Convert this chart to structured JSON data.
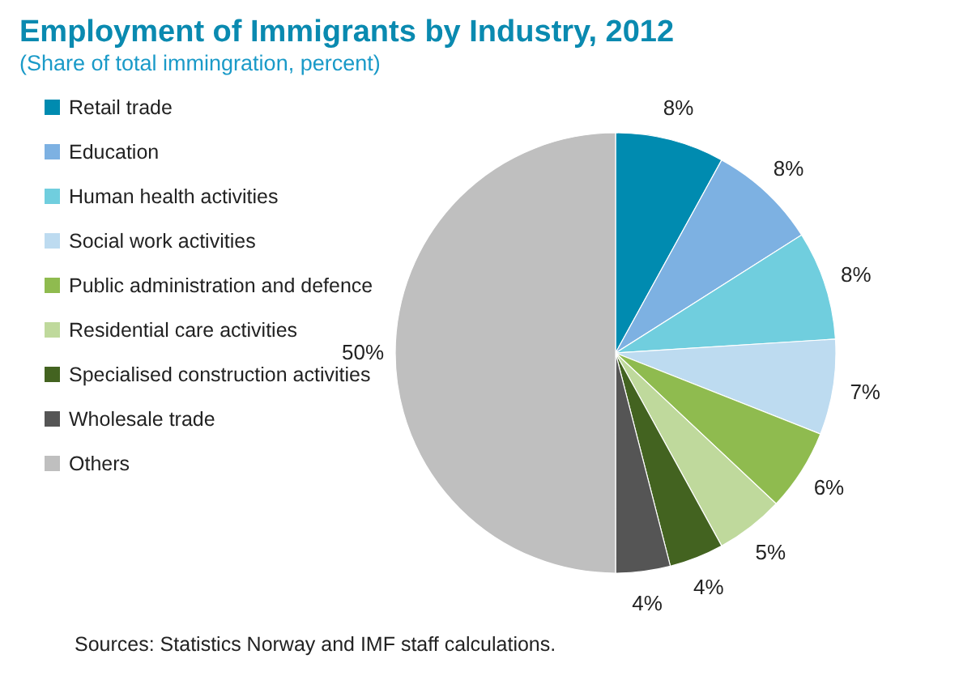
{
  "chart_data": {
    "type": "pie",
    "title": "Employment of Immigrants by Industry, 2012",
    "subtitle": "(Share of total immingration, percent)",
    "categories": [
      "Retail trade",
      "Education",
      "Human health activities",
      "Social work activities",
      "Public administration and defence",
      "Residential care activities",
      "Specialised construction activities",
      "Wholesale trade",
      "Others"
    ],
    "values": [
      8,
      8,
      8,
      7,
      6,
      5,
      4,
      4,
      50
    ],
    "value_labels": [
      "8%",
      "8%",
      "8%",
      "7%",
      "6%",
      "5%",
      "4%",
      "4%",
      "50%"
    ],
    "colors": [
      "#008bb0",
      "#7db1e2",
      "#70cede",
      "#bddbf0",
      "#8fbb4f",
      "#bfd99c",
      "#436320",
      "#555555",
      "#bfbfbf"
    ],
    "legend": "left",
    "annotations": [
      "Sources: Statistics Norway and IMF staff calculations."
    ]
  }
}
